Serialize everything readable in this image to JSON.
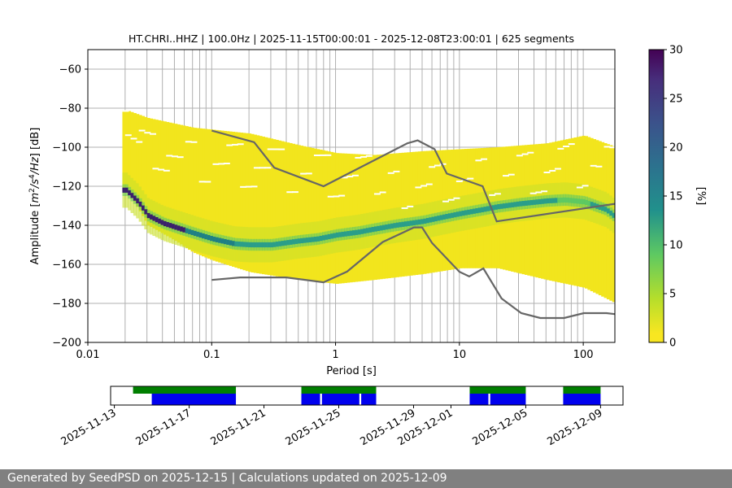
{
  "chart_data": [
    {
      "type": "heatmap",
      "title": "HT.CHRI..HHZ | 100.0Hz | 2025-11-15T00:00:01 - 2025-12-08T23:00:01 | 625 segments",
      "xlabel": "Period [s]",
      "ylabel_parts": [
        "Amplitude [",
        "m",
        "2",
        "/s",
        "4",
        "/Hz",
        "] [dB]"
      ],
      "x_scale": "log",
      "xlim": [
        0.01,
        180
      ],
      "ylim": [
        -200,
        -50
      ],
      "x_ticks": [
        {
          "value": 0.01,
          "label": "0.01"
        },
        {
          "value": 0.1,
          "label": "0.1"
        },
        {
          "value": 1,
          "label": "1"
        },
        {
          "value": 10,
          "label": "10"
        },
        {
          "value": 100,
          "label": "100"
        }
      ],
      "y_ticks": [
        {
          "value": -60,
          "label": "−60"
        },
        {
          "value": -80,
          "label": "−80"
        },
        {
          "value": -100,
          "label": "−100"
        },
        {
          "value": -120,
          "label": "−120"
        },
        {
          "value": -140,
          "label": "−140"
        },
        {
          "value": -160,
          "label": "−160"
        },
        {
          "value": -180,
          "label": "−180"
        },
        {
          "value": -200,
          "label": "−200"
        }
      ],
      "grid": true,
      "colormap": "viridis",
      "color_range": [
        0,
        30
      ],
      "colorbar_label": "[%]",
      "colorbar_ticks": [
        {
          "value": 0,
          "label": "0"
        },
        {
          "value": 5,
          "label": "5"
        },
        {
          "value": 10,
          "label": "10"
        },
        {
          "value": 15,
          "label": "15"
        },
        {
          "value": 20,
          "label": "20"
        },
        {
          "value": 25,
          "label": "25"
        },
        {
          "value": 30,
          "label": "30"
        }
      ],
      "mode_curve": {
        "periods": [
          0.02,
          0.025,
          0.03,
          0.04,
          0.05,
          0.07,
          0.1,
          0.15,
          0.2,
          0.3,
          0.5,
          0.7,
          1,
          1.5,
          2,
          3,
          5,
          7,
          10,
          15,
          20,
          30,
          50,
          70,
          100,
          150,
          180
        ],
        "values": [
          -122,
          -128,
          -135,
          -139,
          -141,
          -144,
          -147,
          -149.5,
          -150,
          -150,
          -148,
          -147,
          -145,
          -143.5,
          -142,
          -140,
          -138,
          -136,
          -134,
          -132,
          -130.5,
          -129,
          -127.5,
          -127,
          -128,
          -132,
          -136
        ]
      },
      "envelope": {
        "periods": [
          0.02,
          0.03,
          0.05,
          0.07,
          0.1,
          0.2,
          0.5,
          1,
          2,
          5,
          10,
          20,
          50,
          100,
          180
        ],
        "upper": [
          -81,
          -85,
          -88,
          -90,
          -91,
          -93,
          -99,
          -103,
          -104,
          -102,
          -101,
          -100,
          -98,
          -94,
          -100
        ],
        "lower": [
          -121,
          -140,
          -148,
          -154,
          -158,
          -164,
          -168,
          -170,
          -168,
          -165,
          -162,
          -162,
          -168,
          -172,
          -180
        ]
      },
      "reference_curves": [
        {
          "name": "high-noise-model",
          "periods": [
            0.1,
            0.22,
            0.32,
            0.8,
            3.8,
            4.6,
            6.3,
            7.9,
            15.4,
            20,
            180
          ],
          "values": [
            -91.5,
            -97.4,
            -110.5,
            -120,
            -98,
            -96.5,
            -101,
            -113.5,
            -120,
            -138,
            -129
          ]
        },
        {
          "name": "low-noise-model",
          "periods": [
            0.1,
            0.17,
            0.4,
            0.8,
            1.24,
            2.4,
            4.3,
            5.0,
            6.0,
            10,
            12,
            15.6,
            21.9,
            31.6,
            45,
            70,
            101,
            154,
            180
          ],
          "values": [
            -168,
            -166.7,
            -166.7,
            -169.2,
            -163.7,
            -148.6,
            -141.1,
            -141.1,
            -149,
            -163.8,
            -166.2,
            -162.1,
            -177.5,
            -185,
            -187.5,
            -187.5,
            -185,
            -185,
            -185.5
          ]
        }
      ]
    },
    {
      "type": "timeline",
      "x_ticks": [
        "2025-11-13",
        "2025-11-17",
        "2025-11-21",
        "2025-11-25",
        "2025-11-29",
        "2025-12-01",
        "2025-12-05",
        "2025-12-09"
      ],
      "tick_offsets_days": [
        0,
        4,
        8,
        12,
        16,
        18,
        22,
        26
      ],
      "xlim_days": [
        -0.2,
        27.2
      ],
      "coverage_green": [
        [
          1,
          6.5
        ],
        [
          10,
          14
        ],
        [
          19,
          22
        ],
        [
          24,
          26
        ]
      ],
      "coverage_blue": [
        [
          2,
          6.5
        ],
        [
          10,
          11
        ],
        [
          11.1,
          13.1
        ],
        [
          13.2,
          14
        ],
        [
          19,
          20
        ],
        [
          20.1,
          22
        ],
        [
          24,
          26
        ]
      ]
    }
  ],
  "colors": {
    "green": "#007f00",
    "blue": "#0000ee",
    "gray_curve": "#666666",
    "grid": "#b0b0b0"
  },
  "footer": {
    "text": "Generated by SeedPSD on 2025-12-15 | Calculations updated on 2025-12-09"
  }
}
